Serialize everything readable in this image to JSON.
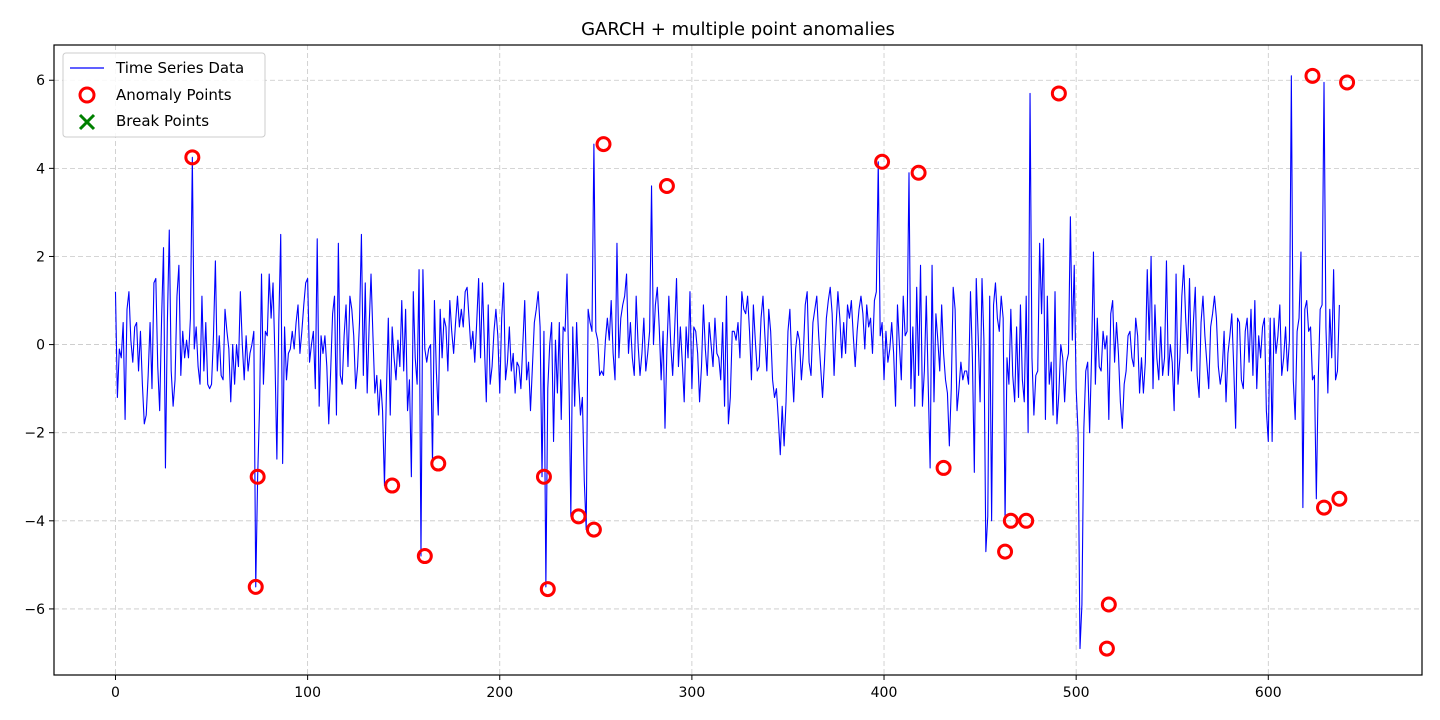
{
  "chart_data": {
    "type": "line",
    "title": "GARCH + multiple point anomalies",
    "xlabel": "",
    "ylabel": "",
    "xlim": [
      -32,
      680
    ],
    "ylim": [
      -7.5,
      6.8
    ],
    "x_ticks": [
      0,
      100,
      200,
      300,
      400,
      500,
      600
    ],
    "y_ticks": [
      -6,
      -4,
      -2,
      0,
      2,
      4,
      6
    ],
    "y_tick_labels": [
      "−6",
      "−4",
      "−2",
      "0",
      "2",
      "4",
      "6"
    ],
    "grid": true,
    "legend_position": "upper-left",
    "series": [
      {
        "name": "Time Series Data",
        "color": "#0000ff",
        "x_start": 0,
        "x_step": 1,
        "values": [
          1.2,
          -1.2,
          -0.1,
          -0.3,
          0.5,
          -1.7,
          0.8,
          1.2,
          0.1,
          -0.4,
          0.4,
          0.5,
          -0.6,
          0.3,
          -0.9,
          -1.8,
          -1.6,
          -0.7,
          0.5,
          -1.0,
          1.4,
          1.5,
          -0.5,
          -1.5,
          0.6,
          2.2,
          -2.8,
          0.5,
          2.6,
          -0.6,
          -1.4,
          -0.8,
          1.1,
          1.8,
          -0.7,
          0.3,
          -0.3,
          0.1,
          -0.3,
          0.6,
          4.25,
          -0.1,
          0.4,
          -0.5,
          -0.9,
          1.1,
          -0.6,
          0.5,
          -0.9,
          -1.0,
          -0.9,
          0.2,
          1.9,
          -0.6,
          0.2,
          -0.7,
          -0.8,
          0.8,
          0.3,
          -0.1,
          -1.3,
          0.0,
          -0.9,
          0.0,
          -0.5,
          1.2,
          0.0,
          -0.8,
          0.2,
          -0.6,
          -0.2,
          0.0,
          0.3,
          -5.5,
          -3.0,
          -1.4,
          1.6,
          -0.9,
          0.3,
          0.2,
          1.6,
          0.6,
          1.4,
          -0.3,
          -2.6,
          0.5,
          2.5,
          -2.7,
          0.4,
          -0.8,
          -0.2,
          -0.1,
          0.3,
          -0.1,
          0.5,
          0.9,
          -0.2,
          0.3,
          0.9,
          1.4,
          1.5,
          -0.4,
          0.0,
          0.3,
          -1.0,
          2.4,
          -1.4,
          0.2,
          -0.2,
          0.2,
          -0.5,
          -1.8,
          -0.6,
          0.7,
          1.1,
          -1.6,
          2.3,
          -0.7,
          -0.9,
          0.2,
          0.9,
          -0.5,
          1.1,
          0.8,
          0.2,
          -1.0,
          -0.5,
          0.5,
          2.5,
          -0.7,
          1.4,
          -1.1,
          0.4,
          1.6,
          0.2,
          -1.1,
          -0.7,
          -1.6,
          -0.8,
          -1.5,
          -3.2,
          -1.1,
          0.6,
          -1.6,
          0.4,
          -0.3,
          -0.8,
          0.1,
          -0.5,
          1.0,
          -0.6,
          0.8,
          -1.5,
          -0.8,
          -3.0,
          1.2,
          -0.3,
          -0.9,
          1.7,
          -4.8,
          1.7,
          -0.1,
          -0.4,
          -0.1,
          0.0,
          -2.7,
          1.0,
          -0.6,
          -1.6,
          0.8,
          -0.3,
          0.6,
          0.4,
          -0.6,
          1.0,
          0.3,
          -0.2,
          0.5,
          1.1,
          0.4,
          0.8,
          0.4,
          1.2,
          1.3,
          0.6,
          -0.1,
          0.3,
          -0.4,
          0.5,
          1.5,
          -0.3,
          1.4,
          0.0,
          -1.3,
          0.9,
          -0.9,
          -0.5,
          0.3,
          0.8,
          0.2,
          -1.1,
          0.6,
          1.4,
          -0.8,
          -0.4,
          0.4,
          -0.6,
          -0.2,
          -1.1,
          -0.4,
          -0.5,
          -1.0,
          0.0,
          1.0,
          -0.8,
          -0.4,
          -1.5,
          -0.5,
          0.5,
          0.8,
          1.2,
          0.4,
          -3.0,
          0.3,
          -5.5,
          -1.0,
          0.0,
          0.5,
          -2.2,
          0.1,
          -1.1,
          0.5,
          -1.7,
          0.4,
          0.3,
          1.6,
          -0.7,
          -3.9,
          0.4,
          -1.4,
          0.5,
          -0.8,
          -1.6,
          -1.2,
          -3.1,
          -4.2,
          0.8,
          0.5,
          0.3,
          4.55,
          0.3,
          0.1,
          -0.7,
          -0.6,
          -0.7,
          0.1,
          0.6,
          0.1,
          1.0,
          -0.2,
          -0.8,
          2.3,
          -0.3,
          0.6,
          0.9,
          1.1,
          1.6,
          -0.2,
          0.5,
          -0.3,
          -0.7,
          1.1,
          0.0,
          -0.7,
          -0.2,
          0.6,
          -0.6,
          -0.2,
          0.3,
          3.6,
          0.0,
          0.9,
          1.3,
          0.4,
          -0.8,
          0.3,
          -1.9,
          -0.1,
          1.1,
          0.0,
          -0.7,
          0.3,
          1.5,
          -0.5,
          0.4,
          -0.4,
          -1.3,
          0.4,
          -0.3,
          1.2,
          -1.0,
          0.4,
          0.3,
          -0.2,
          -1.3,
          -0.5,
          0.9,
          -0.1,
          -0.7,
          0.5,
          0.0,
          -0.5,
          0.6,
          -0.2,
          -0.3,
          -0.8,
          0.5,
          -1.4,
          1.1,
          -1.8,
          -1.2,
          0.3,
          0.3,
          0.1,
          0.5,
          -0.3,
          1.2,
          0.8,
          0.7,
          1.1,
          0.3,
          -0.8,
          0.9,
          0.1,
          -0.6,
          -0.5,
          0.6,
          1.1,
          0.2,
          -0.6,
          0.8,
          0.3,
          -0.8,
          -1.2,
          -1.0,
          -1.7,
          -2.5,
          -1.4,
          -2.3,
          -1.3,
          0.3,
          0.8,
          -0.4,
          -1.3,
          -0.1,
          0.3,
          0.1,
          -0.8,
          -0.2,
          0.9,
          1.2,
          -0.4,
          -0.7,
          0.5,
          0.8,
          1.1,
          0.2,
          -0.5,
          -1.2,
          -0.4,
          0.6,
          1.0,
          1.3,
          0.7,
          -0.7,
          0.4,
          1.2,
          0.6,
          -0.3,
          0.5,
          -0.2,
          0.9,
          0.6,
          1.0,
          0.2,
          -0.5,
          0.3,
          0.8,
          1.1,
          0.7,
          -0.1,
          0.9,
          0.4,
          0.6,
          -0.2,
          1.0,
          1.2,
          4.15,
          0.2,
          0.5,
          -0.8,
          0.3,
          -0.4,
          -0.1,
          0.5,
          -0.2,
          -1.4,
          0.9,
          0.0,
          -0.8,
          1.1,
          0.2,
          0.3,
          3.9,
          -1.0,
          0.4,
          -1.4,
          1.3,
          -0.7,
          1.8,
          -1.4,
          -0.6,
          1.1,
          -0.9,
          -2.8,
          1.8,
          -1.3,
          0.7,
          0.1,
          -0.6,
          0.9,
          -0.2,
          -0.8,
          -1.1,
          -2.3,
          -1.0,
          1.3,
          0.8,
          -1.5,
          -1.0,
          -0.4,
          -0.8,
          -0.6,
          -0.6,
          -0.9,
          1.2,
          -0.3,
          -2.9,
          1.5,
          0.2,
          -1.3,
          1.5,
          0.1,
          -4.7,
          -3.9,
          1.1,
          -4.0,
          0.9,
          1.4,
          0.6,
          0.3,
          1.1,
          0.6,
          -4.0,
          -0.3,
          -0.9,
          0.8,
          -0.7,
          -1.3,
          0.4,
          -1.2,
          0.9,
          -0.8,
          -1.3,
          1.1,
          -2.0,
          5.7,
          -0.3,
          -1.6,
          -0.7,
          -0.6,
          2.3,
          0.7,
          2.4,
          -1.7,
          1.1,
          -0.9,
          -0.4,
          -1.6,
          1.2,
          -1.8,
          -1.1,
          0.0,
          -0.3,
          -1.3,
          -0.4,
          -0.2,
          2.9,
          0.1,
          1.8,
          -1.0,
          -2.0,
          -6.9,
          -5.9,
          -1.9,
          -0.6,
          -0.4,
          -2.0,
          -0.3,
          2.1,
          -0.9,
          0.6,
          -0.5,
          -0.6,
          0.3,
          -0.1,
          0.2,
          -1.7,
          0.7,
          1.0,
          -0.4,
          0.5,
          -0.2,
          -1.3,
          -1.9,
          -0.9,
          -0.6,
          0.2,
          0.3,
          -0.3,
          -0.5,
          0.6,
          0.2,
          -1.1,
          -0.3,
          -1.1,
          -0.4,
          1.7,
          0.1,
          2.0,
          -1.0,
          0.9,
          -0.3,
          -0.8,
          0.4,
          -0.7,
          -0.3,
          1.9,
          -0.7,
          0.0,
          -0.4,
          -1.5,
          1.6,
          -0.9,
          -0.3,
          1.1,
          1.8,
          0.6,
          -0.2,
          1.5,
          -0.6,
          0.5,
          1.3,
          -0.7,
          -1.2,
          0.5,
          1.1,
          0.2,
          -0.4,
          -1.0,
          0.4,
          0.7,
          1.1,
          0.6,
          -0.5,
          -0.9,
          -0.6,
          0.3,
          -1.3,
          -0.2,
          0.2,
          0.7,
          -0.5,
          -1.9,
          0.6,
          0.5,
          -0.8,
          -1.0,
          0.3,
          0.6,
          -0.4,
          0.8,
          -0.7,
          1.0,
          -1.0,
          0.2,
          -0.3,
          0.4,
          0.6,
          -1.5,
          -2.2,
          0.6,
          -2.2,
          0.6,
          -0.2,
          0.2,
          0.9,
          -0.7,
          -0.3,
          0.4,
          -0.6,
          0.1,
          6.1,
          -0.8,
          -1.7,
          0.3,
          0.6,
          2.1,
          -3.7,
          0.8,
          1.0,
          0.3,
          0.4,
          -0.8,
          -0.7,
          -3.5,
          -0.8,
          0.8,
          0.9,
          5.95,
          0.4,
          -1.1,
          0.8,
          -0.3,
          1.7,
          -0.8,
          -0.6,
          0.9
        ]
      },
      {
        "name": "Anomaly Points",
        "color": "#ff0000",
        "marker": "hollow-circle",
        "points": [
          [
            40,
            4.25
          ],
          [
            73,
            -5.5
          ],
          [
            74,
            -3.0
          ],
          [
            144,
            -3.2
          ],
          [
            161,
            -4.8
          ],
          [
            168,
            -2.7
          ],
          [
            223,
            -3.0
          ],
          [
            225,
            -5.55
          ],
          [
            241,
            -3.9
          ],
          [
            249,
            -4.2
          ],
          [
            254,
            4.55
          ],
          [
            287,
            3.6
          ],
          [
            399,
            4.15
          ],
          [
            418,
            3.9
          ],
          [
            431,
            -2.8
          ],
          [
            463,
            -4.7
          ],
          [
            466,
            -4.0
          ],
          [
            474,
            -4.0
          ],
          [
            491,
            5.7
          ],
          [
            516,
            -6.9
          ],
          [
            517,
            -5.9
          ],
          [
            623,
            6.1
          ],
          [
            629,
            -3.7
          ],
          [
            637,
            -3.5
          ],
          [
            641,
            5.95
          ]
        ]
      },
      {
        "name": "Break Points",
        "color": "#008000",
        "marker": "x",
        "points": []
      }
    ]
  }
}
